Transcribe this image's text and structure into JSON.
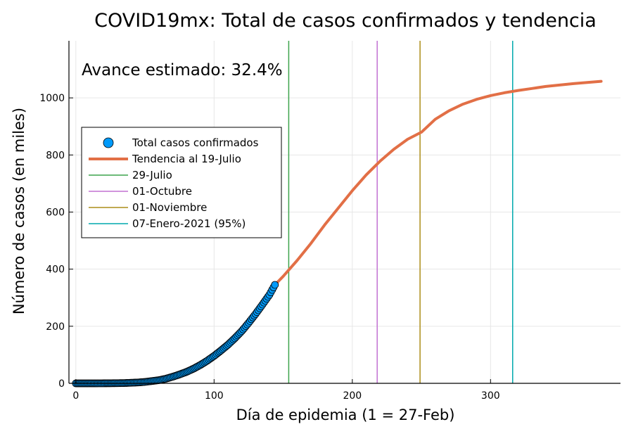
{
  "chart_data": {
    "type": "scatter",
    "title": "COVID19mx: Total de casos confirmados y tendencia",
    "xlabel": "Día de epidemia (1 = 27-Feb)",
    "ylabel": "Número de casos (en miles)",
    "xlim": [
      -5,
      394
    ],
    "ylim": [
      0,
      1200
    ],
    "xticks": [
      0,
      100,
      200,
      300
    ],
    "yticks": [
      0,
      200,
      400,
      600,
      800,
      1000
    ],
    "grid": true,
    "legend_position": "middle-left",
    "annotation": "Avance estimado: 32.4%",
    "series": [
      {
        "name": "Total casos confirmados",
        "kind": "scatter",
        "color": "#009AFA",
        "x": [
          0,
          5,
          10,
          15,
          20,
          25,
          30,
          35,
          40,
          45,
          50,
          55,
          60,
          65,
          70,
          75,
          80,
          85,
          90,
          95,
          100,
          105,
          110,
          115,
          120,
          125,
          130,
          135,
          140,
          144
        ],
        "y": [
          0,
          0,
          0,
          0,
          0.1,
          0.3,
          0.6,
          1,
          2,
          3,
          5,
          8,
          11,
          16,
          23,
          31,
          40,
          51,
          64,
          79,
          96,
          115,
          135,
          158,
          183,
          212,
          243,
          276,
          310,
          345
        ]
      },
      {
        "name": "Tendencia al 19-Julio",
        "kind": "line",
        "color": "#E26F46",
        "x": [
          144,
          150,
          160,
          170,
          180,
          190,
          200,
          210,
          220,
          230,
          240,
          250,
          260,
          270,
          280,
          290,
          300,
          310,
          320,
          330,
          340,
          350,
          360,
          370,
          380
        ],
        "y": [
          345,
          375,
          430,
          490,
          555,
          615,
          675,
          730,
          778,
          820,
          855,
          880,
          925,
          955,
          978,
          995,
          1008,
          1018,
          1026,
          1033,
          1040,
          1045,
          1050,
          1054,
          1058
        ]
      }
    ],
    "vlines": [
      {
        "name": "29-Julio",
        "x": 154,
        "color": "#3DA44D"
      },
      {
        "name": "01-Octubre",
        "x": 218,
        "color": "#C271D2"
      },
      {
        "name": "01-Noviembre",
        "x": 249,
        "color": "#AC8D18"
      },
      {
        "name": "07-Enero-2021 (95%)",
        "x": 316,
        "color": "#00A9AD"
      }
    ]
  }
}
